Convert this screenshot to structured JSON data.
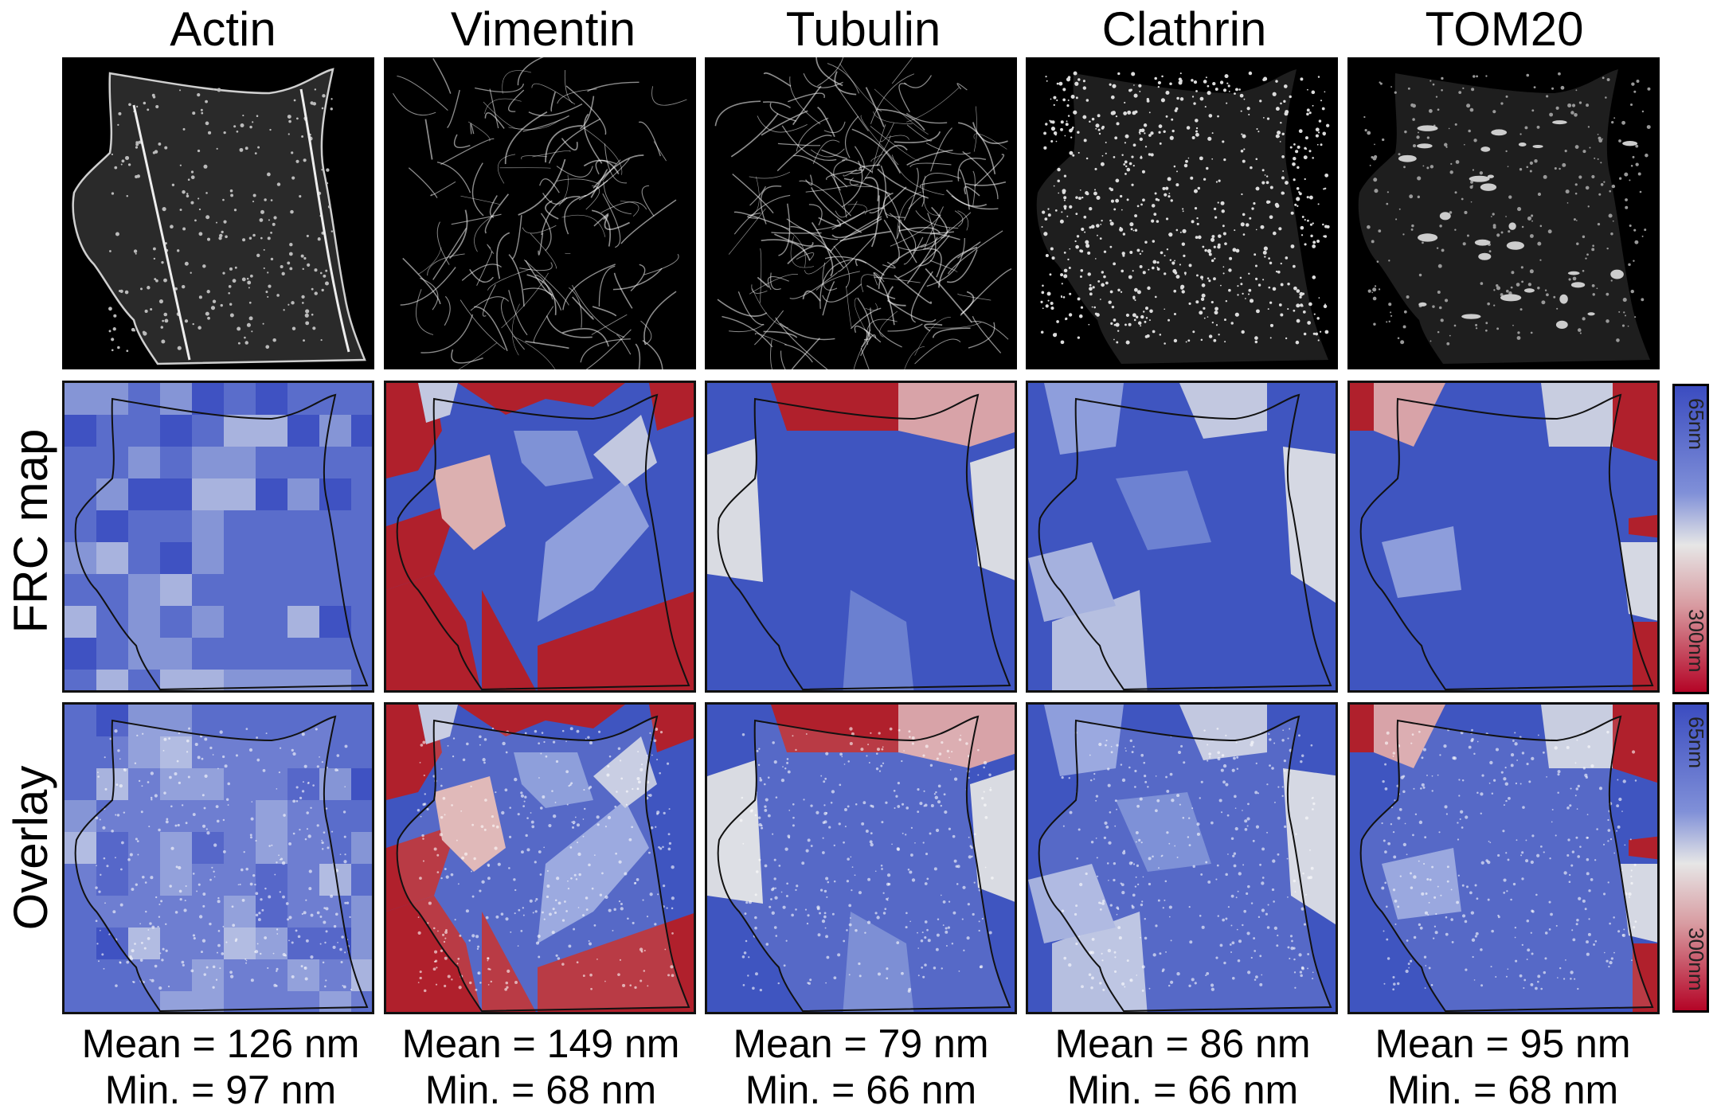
{
  "columns": [
    {
      "name": "Actin",
      "mean": "Mean = 126 nm",
      "min": "Min. = 97 nm"
    },
    {
      "name": "Vimentin",
      "mean": "Mean = 149 nm",
      "min": "Min. = 68 nm"
    },
    {
      "name": "Tubulin",
      "mean": "Mean = 79 nm",
      "min": "Min. = 66 nm"
    },
    {
      "name": "Clathrin",
      "mean": "Mean = 86 nm",
      "min": "Min. = 66 nm"
    },
    {
      "name": "TOM20",
      "mean": "Mean = 95 nm",
      "min": "Min. = 68 nm"
    }
  ],
  "rows": {
    "frc": "FRC map",
    "overlay": "Overlay"
  },
  "colorbar": {
    "top_label": "65nm",
    "bottom_label": "300nm",
    "colors": [
      "#3b4cc0",
      "#dddddd",
      "#b40426"
    ]
  },
  "colors": {
    "blue": "#3f55c0",
    "light_blue": "#7f92d6",
    "pale": "#c8cde0",
    "pink": "#dcb0b0",
    "red": "#b0202c"
  }
}
